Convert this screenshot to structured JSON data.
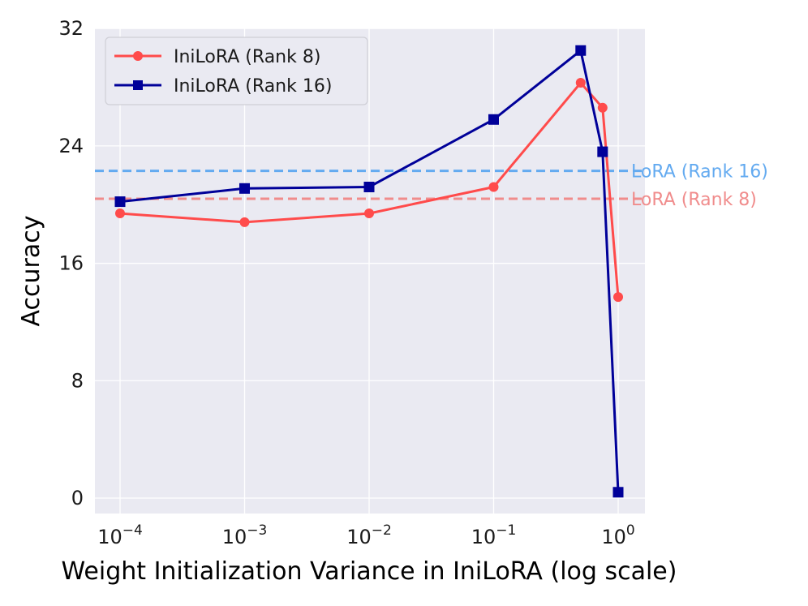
{
  "chart_data": {
    "type": "line",
    "xscale": "log",
    "x": [
      0.0001,
      0.001,
      0.01,
      0.1,
      0.5,
      0.75,
      1.0
    ],
    "xtick_values": [
      0.0001,
      0.001,
      0.01,
      0.1,
      1.0
    ],
    "xtick_labels": [
      {
        "base": "10",
        "exp": "−4"
      },
      {
        "base": "10",
        "exp": "−3"
      },
      {
        "base": "10",
        "exp": "−2"
      },
      {
        "base": "10",
        "exp": "−1"
      },
      {
        "base": "10",
        "exp": "0"
      }
    ],
    "ylim": [
      -1,
      32
    ],
    "yticks": [
      0,
      8,
      16,
      24,
      32
    ],
    "xlabel": "Weight Initialization Variance in IniLoRA (log scale)",
    "ylabel": "Accuracy",
    "grid": true,
    "legend_position": "top-left",
    "series": [
      {
        "name": "IniLoRA (Rank 8)",
        "color": "#ff4b4b",
        "marker": "circle",
        "values": [
          19.4,
          18.8,
          19.4,
          21.2,
          28.3,
          26.6,
          13.7
        ]
      },
      {
        "name": "IniLoRA (Rank 16)",
        "color": "#000099",
        "marker": "square",
        "values": [
          20.2,
          21.1,
          21.2,
          25.8,
          30.5,
          23.6,
          0.4
        ]
      }
    ],
    "reference_lines": [
      {
        "label": "LoRA (Rank 16)",
        "value": 22.3,
        "color": "#63aaf0"
      },
      {
        "label": "LoRA (Rank 8)",
        "value": 20.4,
        "color": "#f08c8c"
      }
    ]
  }
}
